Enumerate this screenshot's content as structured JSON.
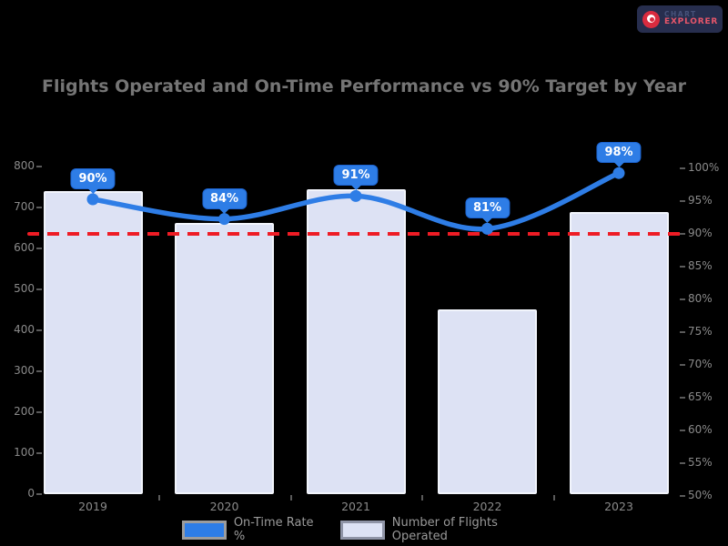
{
  "page": {
    "background": "#000000"
  },
  "brand": {
    "line1": "CHART",
    "line2": "EXPLORER",
    "badge_color": "#272e4e",
    "icon_color": "#d92b3f",
    "icon_name": "brand-swirl-icon"
  },
  "chart_data": {
    "type": "bar",
    "title": "Flights Operated and On-Time Performance vs 90% Target by Year",
    "categories": [
      "2019",
      "2020",
      "2021",
      "2022",
      "2023"
    ],
    "series": [
      {
        "name": "On-Time Rate %",
        "type": "line",
        "values": [
          90,
          84,
          91,
          81,
          98
        ],
        "point_labels": [
          "90%",
          "84%",
          "91%",
          "81%",
          "98%"
        ],
        "color": "#2e7de6"
      },
      {
        "name": "Number of Flights Operated",
        "type": "bar",
        "values": [
          740,
          662,
          744,
          452,
          690
        ],
        "color": "#dde2f4"
      }
    ],
    "target_line": {
      "axis": "right",
      "value": 90,
      "color": "#ee1c25",
      "style": "dashed"
    },
    "left_axis": {
      "ticks": [
        "800",
        "700",
        "600",
        "500",
        "400",
        "300",
        "200",
        "100",
        "0"
      ],
      "min": 0,
      "max": 800
    },
    "right_axis": {
      "ticks": [
        "100%",
        "95%",
        "90%",
        "85%",
        "80%",
        "75%",
        "70%",
        "65%",
        "60%",
        "55%",
        "50%"
      ],
      "min": 50,
      "max": 100
    },
    "legend_position": "bottom",
    "grid": false
  }
}
